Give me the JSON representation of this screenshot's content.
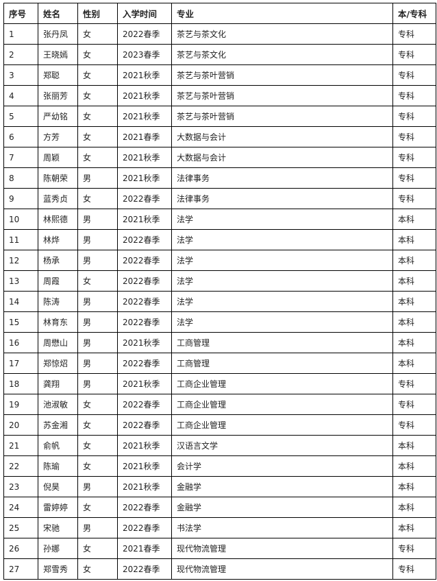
{
  "table": {
    "headers": [
      "序号",
      "姓名",
      "性别",
      "入学时间",
      "专业",
      "本/专科"
    ],
    "rows": [
      [
        "1",
        "张丹凤",
        "女",
        "2022春季",
        "茶艺与茶文化",
        "专科"
      ],
      [
        "2",
        "王晓嫣",
        "女",
        "2023春季",
        "茶艺与茶文化",
        "专科"
      ],
      [
        "3",
        "郑聪",
        "女",
        "2021秋季",
        "茶艺与茶叶营销",
        "专科"
      ],
      [
        "4",
        "张丽芳",
        "女",
        "2021秋季",
        "茶艺与茶叶营销",
        "专科"
      ],
      [
        "5",
        "严幼铭",
        "女",
        "2021秋季",
        "茶艺与茶叶营销",
        "专科"
      ],
      [
        "6",
        "方芳",
        "女",
        "2021春季",
        "大数据与会计",
        "专科"
      ],
      [
        "7",
        "周颖",
        "女",
        "2021秋季",
        "大数据与会计",
        "专科"
      ],
      [
        "8",
        "陈朝荣",
        "男",
        "2021秋季",
        "法律事务",
        "专科"
      ],
      [
        "9",
        "蓝秀贞",
        "女",
        "2022春季",
        "法律事务",
        "专科"
      ],
      [
        "10",
        "林熙德",
        "男",
        "2021秋季",
        "法学",
        "本科"
      ],
      [
        "11",
        "林烨",
        "男",
        "2022春季",
        "法学",
        "本科"
      ],
      [
        "12",
        "杨承",
        "男",
        "2022春季",
        "法学",
        "本科"
      ],
      [
        "13",
        "周霞",
        "女",
        "2022春季",
        "法学",
        "本科"
      ],
      [
        "14",
        "陈涛",
        "男",
        "2022春季",
        "法学",
        "本科"
      ],
      [
        "15",
        "林育东",
        "男",
        "2022春季",
        "法学",
        "本科"
      ],
      [
        "16",
        "周懋山",
        "男",
        "2021秋季",
        "工商管理",
        "本科"
      ],
      [
        "17",
        "郑惊炤",
        "男",
        "2022春季",
        "工商管理",
        "本科"
      ],
      [
        "18",
        "龚翔",
        "男",
        "2021秋季",
        "工商企业管理",
        "专科"
      ],
      [
        "19",
        "池淑敏",
        "女",
        "2022春季",
        "工商企业管理",
        "专科"
      ],
      [
        "20",
        "苏金湘",
        "女",
        "2022春季",
        "工商企业管理",
        "专科"
      ],
      [
        "21",
        "俞帆",
        "女",
        "2021秋季",
        "汉语言文学",
        "本科"
      ],
      [
        "22",
        "陈瑜",
        "女",
        "2021秋季",
        "会计学",
        "本科"
      ],
      [
        "23",
        "倪昊",
        "男",
        "2021秋季",
        "金融学",
        "本科"
      ],
      [
        "24",
        "雷婷婷",
        "女",
        "2022春季",
        "金融学",
        "本科"
      ],
      [
        "25",
        "宋驰",
        "男",
        "2022春季",
        "书法学",
        "本科"
      ],
      [
        "26",
        "孙娜",
        "女",
        "2021春季",
        "现代物流管理",
        "专科"
      ],
      [
        "27",
        "郑雪秀",
        "女",
        "2022春季",
        "现代物流管理",
        "专科"
      ]
    ]
  }
}
